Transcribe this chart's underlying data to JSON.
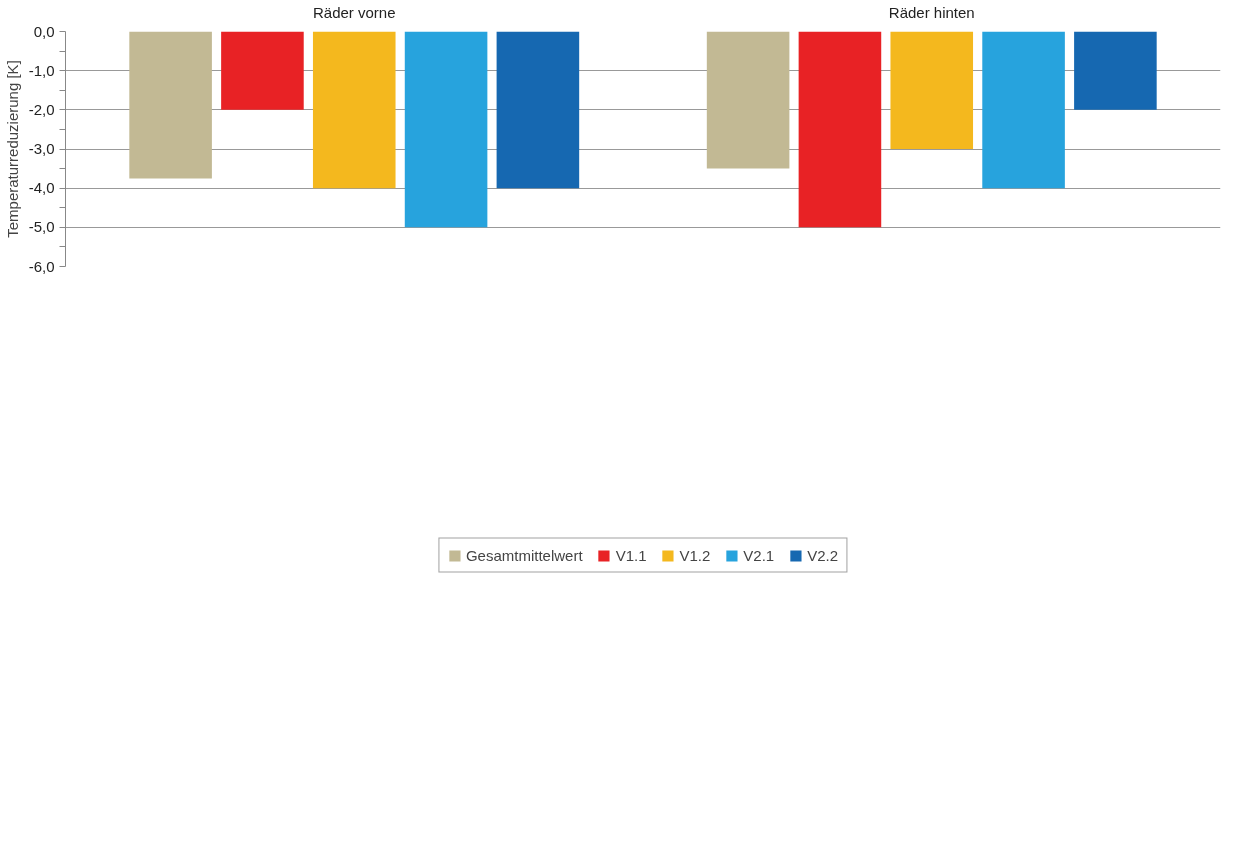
{
  "chart_data": {
    "type": "bar",
    "categories": [
      "Räder vorne",
      "Räder hinten"
    ],
    "ylabel": "Temperaturreduzierung [K]",
    "series": [
      {
        "name": "Gesamtmittelwert",
        "color": "#c2b994",
        "values": [
          -3.75,
          -3.5
        ]
      },
      {
        "name": "V1.1",
        "color": "#e82225",
        "values": [
          -2.0,
          -5.0
        ]
      },
      {
        "name": "V1.2",
        "color": "#f4b81e",
        "values": [
          -4.0,
          -3.0
        ]
      },
      {
        "name": "V2.1",
        "color": "#27a3dd",
        "values": [
          -5.0,
          -4.0
        ]
      },
      {
        "name": "V2.2",
        "color": "#1668b1",
        "values": [
          -4.0,
          -2.0
        ]
      }
    ],
    "ylim": [
      -6.0,
      0.0
    ],
    "yticks": [
      {
        "value": 0,
        "label": "0,0"
      },
      {
        "value": -0.5,
        "label": null
      },
      {
        "value": -1,
        "label": "-1,0"
      },
      {
        "value": -1.5,
        "label": null
      },
      {
        "value": -2,
        "label": "-2,0"
      },
      {
        "value": -2.5,
        "label": null
      },
      {
        "value": -3,
        "label": "-3,0"
      },
      {
        "value": -3.5,
        "label": null
      },
      {
        "value": -4,
        "label": "-4,0"
      },
      {
        "value": -4.5,
        "label": null
      },
      {
        "value": -5,
        "label": "-5,0"
      },
      {
        "value": -5.5,
        "label": null
      },
      {
        "value": -6,
        "label": "-6,0"
      }
    ],
    "grid": "y",
    "legend": "bottom"
  }
}
